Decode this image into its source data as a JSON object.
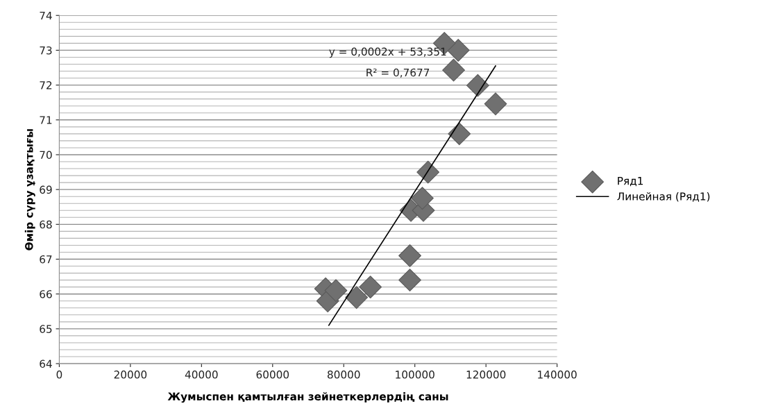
{
  "chart_data": {
    "type": "scatter",
    "xlabel": "Жумыспен қамтылған зейнеткерлердің саны",
    "ylabel": "Өмір сүру ұзақтығы",
    "xlim": [
      0,
      140000
    ],
    "xticks": [
      0,
      20000,
      40000,
      60000,
      80000,
      100000,
      120000,
      140000
    ],
    "ylim": [
      64,
      74
    ],
    "yticks": [
      64,
      65,
      66,
      67,
      68,
      69,
      70,
      71,
      72,
      73,
      74
    ],
    "grid": "y",
    "legend": "right",
    "series": [
      {
        "name": "Ряд1",
        "marker": "diamond",
        "color": "#707070",
        "x": [
          74900,
          75500,
          77800,
          83600,
          87500,
          98600,
          98600,
          98900,
          102400,
          102100,
          103700,
          112500,
          122700,
          117700,
          110900,
          112200,
          108300
        ],
        "values": [
          66.15,
          65.8,
          66.1,
          65.9,
          66.2,
          66.4,
          67.1,
          68.4,
          68.4,
          68.75,
          69.5,
          70.6,
          71.46,
          71.99,
          72.43,
          73.0,
          73.2
        ]
      },
      {
        "name": "Линейная (Ряд1)",
        "type": "line",
        "color": "#000000",
        "line_style": "solid",
        "x": [
          75800,
          122700
        ],
        "values": [
          65.1,
          72.55
        ]
      }
    ],
    "annotations": [
      "y = 0,0002x + 53,351",
      "R² = 0,7677"
    ]
  }
}
